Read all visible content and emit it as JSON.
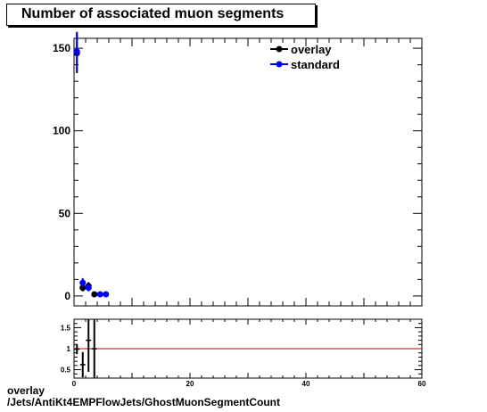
{
  "chart_data": [
    {
      "type": "scatter",
      "title": "Number of associated muon segments",
      "xlim": [
        0,
        60
      ],
      "ylim": [
        -6,
        156
      ],
      "y_ticks": [
        0,
        50,
        100,
        150
      ],
      "legend_position": "top-right",
      "grid": false,
      "series": [
        {
          "name": "overlay",
          "color": "#000000",
          "points": [
            {
              "x": 0.5,
              "y": 147,
              "yerr": 12
            },
            {
              "x": 1.5,
              "y": 5,
              "yerr": 2.2
            },
            {
              "x": 2.5,
              "y": 6,
              "yerr": 2.4
            },
            {
              "x": 3.5,
              "y": 1,
              "yerr": 1
            }
          ]
        },
        {
          "name": "standard",
          "color": "#0000ff",
          "points": [
            {
              "x": 0.5,
              "y": 148,
              "yerr": 12
            },
            {
              "x": 1.5,
              "y": 8,
              "yerr": 2.8
            },
            {
              "x": 2.5,
              "y": 5,
              "yerr": 2.2
            },
            {
              "x": 4.5,
              "y": 1,
              "yerr": 1
            },
            {
              "x": 5.5,
              "y": 1,
              "yerr": 1
            }
          ]
        }
      ]
    },
    {
      "type": "scatter",
      "xlim": [
        0,
        60
      ],
      "ylim": [
        0.3,
        1.7
      ],
      "x_ticks": [
        0,
        20,
        40,
        60
      ],
      "y_ticks": [
        0.5,
        1,
        1.5
      ],
      "reference_line": 1,
      "reference_color": "#cc0000",
      "series": [
        {
          "color": "#000000",
          "points": [
            {
              "x": 0.5,
              "y": 0.99,
              "yerr": 0.12
            },
            {
              "x": 1.5,
              "y": 0.62,
              "yerr": 0.3
            },
            {
              "x": 2.5,
              "y": 1.2,
              "yerr": 0.75
            },
            {
              "x": 3.5,
              "y": 1.0,
              "yerr": 1.4
            }
          ]
        }
      ]
    }
  ],
  "caption": {
    "line1": "overlay",
    "line2": "/Jets/AntiKt4EMPFlowJets/GhostMuonSegmentCount"
  }
}
